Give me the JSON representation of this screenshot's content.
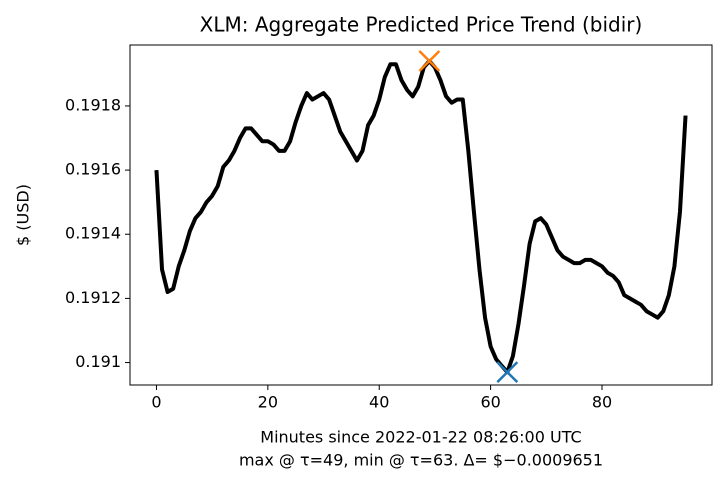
{
  "chart_data": {
    "type": "line",
    "title": "XLM: Aggregate Predicted Price Trend (bidir)",
    "xlabel": [
      "Minutes since 2022-01-22 08:26:00 UTC",
      "max @ τ=49, min @ τ=63. Δ= $−0.0009651"
    ],
    "ylabel": "$ (USD)",
    "x": [
      0,
      1,
      2,
      3,
      4,
      5,
      6,
      7,
      8,
      9,
      10,
      11,
      12,
      13,
      14,
      15,
      16,
      17,
      18,
      19,
      20,
      21,
      22,
      23,
      24,
      25,
      26,
      27,
      28,
      29,
      30,
      31,
      32,
      33,
      34,
      35,
      36,
      37,
      38,
      39,
      40,
      41,
      42,
      43,
      44,
      45,
      46,
      47,
      48,
      49,
      50,
      51,
      52,
      53,
      54,
      55,
      56,
      57,
      58,
      59,
      60,
      61,
      62,
      63,
      64,
      65,
      66,
      67,
      68,
      69,
      70,
      71,
      72,
      73,
      74,
      75,
      76,
      77,
      78,
      79,
      80,
      81,
      82,
      83,
      84,
      85,
      86,
      87,
      88,
      89,
      90,
      91,
      92,
      93,
      94,
      95
    ],
    "series": [
      {
        "color": "#000000",
        "values": [
          0.1916,
          0.19129,
          0.19122,
          0.19123,
          0.1913,
          0.19135,
          0.19141,
          0.19145,
          0.19147,
          0.1915,
          0.19152,
          0.19155,
          0.19161,
          0.19163,
          0.19166,
          0.1917,
          0.19173,
          0.19173,
          0.19171,
          0.19169,
          0.19169,
          0.19168,
          0.19166,
          0.19166,
          0.19169,
          0.19175,
          0.1918,
          0.19184,
          0.19182,
          0.19183,
          0.19184,
          0.19182,
          0.19177,
          0.19172,
          0.19169,
          0.19166,
          0.19163,
          0.19166,
          0.19174,
          0.19177,
          0.19182,
          0.19189,
          0.19193,
          0.19193,
          0.19188,
          0.19185,
          0.19183,
          0.19186,
          0.19192,
          0.19194,
          0.19192,
          0.19188,
          0.19183,
          0.19181,
          0.19182,
          0.19182,
          0.19166,
          0.19147,
          0.19129,
          0.19114,
          0.19105,
          0.19101,
          0.19099,
          0.19097,
          0.19102,
          0.19112,
          0.19124,
          0.19137,
          0.19144,
          0.19145,
          0.19143,
          0.19139,
          0.19135,
          0.19133,
          0.19132,
          0.19131,
          0.19131,
          0.19132,
          0.19132,
          0.19131,
          0.1913,
          0.19128,
          0.19127,
          0.19125,
          0.19121,
          0.1912,
          0.19119,
          0.19118,
          0.19116,
          0.19115,
          0.19114,
          0.19116,
          0.19121,
          0.1913,
          0.19147,
          0.19177
        ]
      }
    ],
    "markers": [
      {
        "x": 49,
        "y": 0.19194,
        "color": "#ff7f0e"
      },
      {
        "x": 63,
        "y": 0.19097,
        "color": "#1f77b4"
      }
    ],
    "xlim": [
      -4.75,
      99.75
    ],
    "xticks": [
      0,
      20,
      40,
      60,
      80
    ],
    "ylim": [
      0.19093,
      0.19199
    ],
    "yticks": [
      0.191,
      0.1912,
      0.1914,
      0.1916,
      0.1918
    ]
  }
}
